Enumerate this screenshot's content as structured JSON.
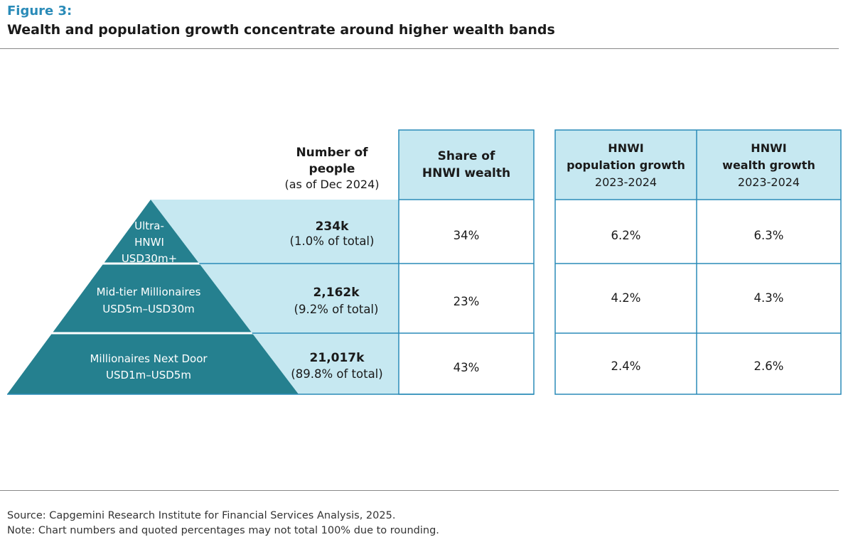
{
  "figure": {
    "label": "Figure 3:",
    "title": "Wealth and population growth concentrate around higher wealth bands"
  },
  "colors": {
    "accent": "#2a8bb8",
    "pyramid": "#25808f",
    "light_fill": "#c6e8f1",
    "table_border": "#2a8bb8"
  },
  "chart_data": {
    "type": "table",
    "title": "Wealth and population growth concentrate around higher wealth bands",
    "columns": {
      "people": [
        "Number of",
        "people",
        "(as of Dec 2024)"
      ],
      "share": [
        "Share of",
        "HNWI wealth"
      ],
      "pop_growth": [
        "HNWI",
        "population growth",
        "2023-2024"
      ],
      "wealth_growth": [
        "HNWI",
        "wealth growth",
        "2023-2024"
      ]
    },
    "rows": [
      {
        "band": [
          "Ultra-",
          "HNWI",
          "USD30m+"
        ],
        "people": "234k",
        "people_share": "(1.0% of total)",
        "share": "34%",
        "pop_growth": "6.2%",
        "wealth_growth": "6.3%"
      },
      {
        "band": [
          "Mid-tier Millionaires",
          "USD5m–USD30m"
        ],
        "people": "2,162k",
        "people_share": "(9.2% of total)",
        "share": "23%",
        "pop_growth": "4.2%",
        "wealth_growth": "4.3%"
      },
      {
        "band": [
          "Millionaires Next Door",
          "USD1m–USD5m"
        ],
        "people": "21,017k",
        "people_share": "(89.8% of total)",
        "share": "43%",
        "pop_growth": "2.4%",
        "wealth_growth": "2.6%"
      }
    ]
  },
  "footer": {
    "source": "Source: Capgemini Research Institute for Financial Services Analysis, 2025.",
    "note": "Note: Chart numbers and quoted percentages may not total 100% due to rounding."
  }
}
